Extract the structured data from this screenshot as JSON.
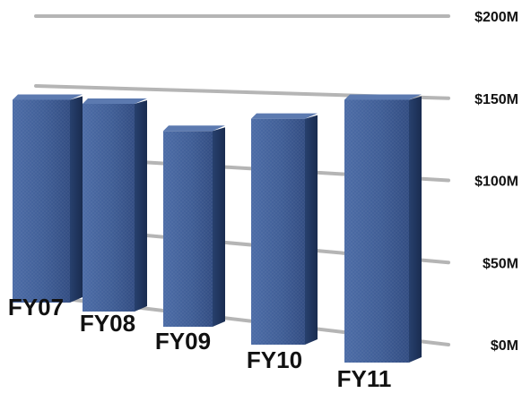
{
  "chart_data": {
    "type": "bar",
    "title": "",
    "xlabel": "",
    "ylabel": "",
    "categories": [
      "FY07",
      "FY08",
      "FY09",
      "FY10",
      "FY11"
    ],
    "values": [
      150,
      150,
      135,
      150,
      170
    ],
    "y_ticks": [
      {
        "value": 0,
        "label": "$0M"
      },
      {
        "value": 50,
        "label": "$50M"
      },
      {
        "value": 100,
        "label": "$100M"
      },
      {
        "value": 150,
        "label": "$150M"
      },
      {
        "value": 200,
        "label": "$200M"
      }
    ],
    "ylim": [
      0,
      200
    ],
    "grid": true,
    "legend": "none",
    "colors": {
      "bar_front": "#3f5f98",
      "bar_side": "#22365e",
      "bar_top": "#5c7ab0",
      "gridline": "#b5b5b5"
    }
  }
}
